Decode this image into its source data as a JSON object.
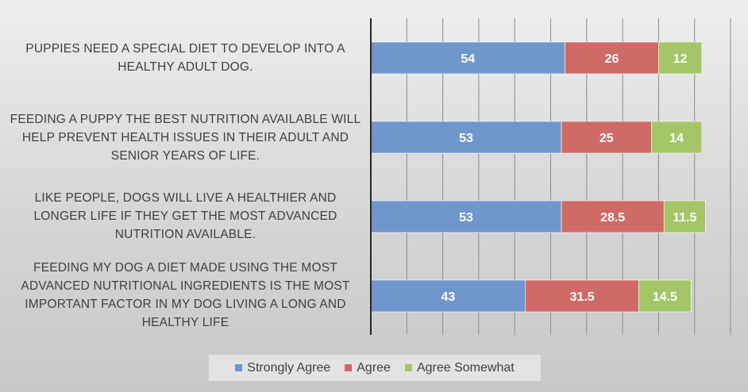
{
  "chart_data": {
    "type": "bar",
    "orientation": "horizontal",
    "stacked": true,
    "categories": [
      "PUPPIES NEED A SPECIAL DIET TO DEVELOP INTO A HEALTHY ADULT DOG.",
      "FEEDING A PUPPY THE BEST NUTRITION AVAILABLE WILL HELP PREVENT HEALTH ISSUES IN THEIR ADULT AND SENIOR YEARS OF LIFE.",
      "LIKE PEOPLE, DOGS WILL LIVE A HEALTHIER AND LONGER LIFE IF THEY GET THE MOST ADVANCED NUTRITION AVAILABLE.",
      "FEEDING MY DOG A DIET MADE USING THE MOST ADVANCED NUTRITIONAL INGREDIENTS IS THE MOST IMPORTANT FACTOR IN MY DOG LIVING A LONG AND HEALTHY LIFE"
    ],
    "series": [
      {
        "name": "Strongly Agree",
        "color": "#6f97cc",
        "values": [
          54,
          53,
          53,
          43
        ]
      },
      {
        "name": "Agree",
        "color": "#cf6a67",
        "values": [
          26,
          25,
          28.5,
          31.5
        ]
      },
      {
        "name": "Agree Somewhat",
        "color": "#a4c667",
        "values": [
          12,
          14,
          11.5,
          14.5
        ]
      }
    ],
    "data_labels": [
      [
        "54",
        "53",
        "53",
        "43"
      ],
      [
        "26",
        "25",
        "28.5",
        "31.5"
      ],
      [
        "12",
        "14",
        "11.5",
        "14.5"
      ]
    ],
    "xlim": [
      0,
      100
    ],
    "x_gridline_step": 10,
    "grid": true,
    "legend_position": "bottom",
    "title": "",
    "xlabel": "",
    "ylabel": ""
  },
  "legend": {
    "items": [
      {
        "label": "Strongly Agree",
        "color": "#6f97cc"
      },
      {
        "label": "Agree",
        "color": "#cf6a67"
      },
      {
        "label": "Agree Somewhat",
        "color": "#a4c667"
      }
    ]
  },
  "labels": {
    "cat0": "PUPPIES NEED A SPECIAL DIET TO DEVELOP INTO A HEALTHY ADULT DOG.",
    "cat1": "FEEDING A PUPPY THE BEST NUTRITION AVAILABLE WILL HELP PREVENT HEALTH ISSUES IN THEIR ADULT AND SENIOR YEARS OF LIFE.",
    "cat2": "LIKE PEOPLE, DOGS WILL LIVE A HEALTHIER AND LONGER LIFE IF THEY GET THE MOST ADVANCED NUTRITION AVAILABLE.",
    "cat3": "FEEDING MY DOG A DIET MADE USING THE MOST ADVANCED NUTRITIONAL INGREDIENTS IS THE MOST IMPORTANT FACTOR IN MY DOG LIVING A LONG AND HEALTHY LIFE"
  }
}
